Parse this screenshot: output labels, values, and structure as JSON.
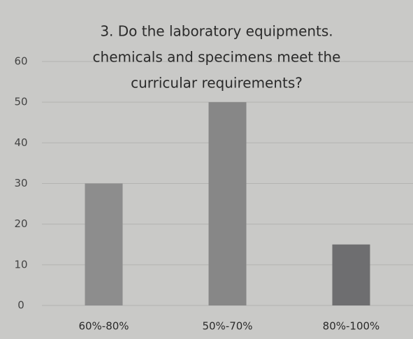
{
  "chart_data": {
    "type": "bar",
    "title": [
      "3. Do the laboratory equipments.",
      "chemicals and specimens meet the",
      "curricular requirements?"
    ],
    "categories": [
      "60%-80%",
      "50%-70%",
      "80%-100%"
    ],
    "values": [
      30,
      50,
      15
    ],
    "colors": [
      "#8d8d8d",
      "#878787",
      "#6e6e70"
    ],
    "ylim": [
      0,
      60
    ],
    "yticks": [
      0,
      10,
      20,
      30,
      40,
      50,
      60
    ],
    "grid": true
  }
}
